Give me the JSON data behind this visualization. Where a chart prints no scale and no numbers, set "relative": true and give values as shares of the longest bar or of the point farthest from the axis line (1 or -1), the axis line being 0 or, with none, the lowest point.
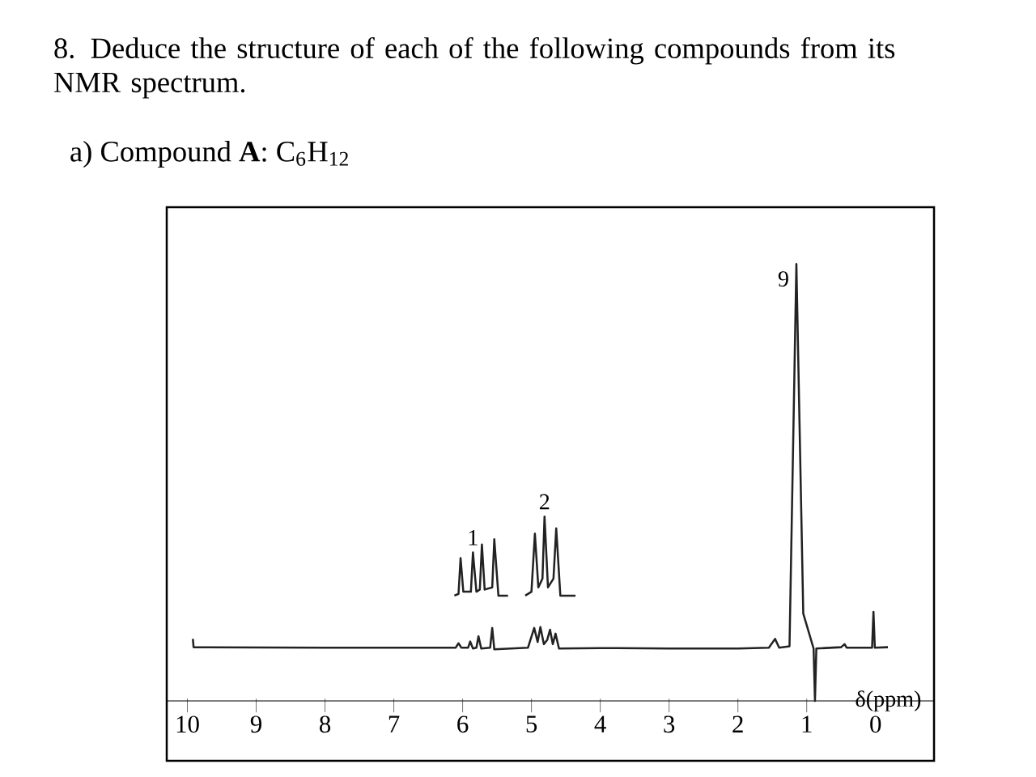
{
  "chart_data": {
    "type": "line",
    "title": "8. Deduce the structure of each of the following compounds from its NMR spectrum.",
    "subtitle": "a) Compound **A**: C$_{6}$H$_{12}$",
    "xlabel": "δ(ppm)",
    "relative": true,
    "xlim": [
      10.3,
      -0.85
    ],
    "xticks": [
      10,
      9,
      8,
      7,
      6,
      5,
      4,
      3,
      2,
      1,
      0
    ],
    "annotations": [
      {
        "text": "1",
        "x": 5.85,
        "y": 0.34
      },
      {
        "text": "2",
        "x": 4.81,
        "y": 0.422
      },
      {
        "text": "9",
        "x": 1.15,
        "y": 1.0
      }
    ],
    "series": [
      {
        "color": "#222222",
        "x": [
          9.92,
          9.91,
          8,
          6.5,
          6.1,
          6.06,
          6.02,
          5.92,
          5.89,
          5.85,
          5.8,
          5.77,
          5.73,
          5.6,
          5.57,
          5.54,
          5.3,
          5.05,
          4.96,
          4.91,
          4.87,
          4.82,
          4.77,
          4.73,
          4.69,
          4.65,
          4.6,
          4,
          3,
          2,
          1.55,
          1.46,
          1.4,
          1.25,
          1.15,
          1.05,
          0.9,
          0.88,
          0.86,
          0.5,
          0.45,
          0.42,
          0.05,
          0.03,
          0.01,
          -0.18
        ],
        "values": [
          0.142,
          0.123,
          0.122,
          0.122,
          0.122,
          0.132,
          0.122,
          0.122,
          0.136,
          0.12,
          0.122,
          0.148,
          0.12,
          0.122,
          0.167,
          0.118,
          0.12,
          0.122,
          0.167,
          0.135,
          0.169,
          0.13,
          0.14,
          0.163,
          0.13,
          0.154,
          0.12,
          0.121,
          0.12,
          0.12,
          0.122,
          0.142,
          0.122,
          0.125,
          1.0,
          0.2,
          0.12,
          0,
          0.12,
          0.123,
          0.13,
          0.122,
          0.122,
          0.204,
          0.122,
          0.123
        ]
      },
      {
        "color": "#222222",
        "x": [
          6.12,
          6.06,
          6.03,
          5.99,
          5.88,
          5.85,
          5.8,
          5.75,
          5.72,
          5.68,
          5.57,
          5.54,
          5.48,
          5.34,
          5.2,
          5.09,
          5.0,
          4.95,
          4.9,
          4.84,
          4.81,
          4.76,
          4.68,
          4.64,
          4.58,
          4.36
        ],
        "values": [
          0.241,
          0.245,
          0.327,
          0.25,
          0.25,
          0.34,
          0.25,
          0.255,
          0.358,
          0.255,
          0.26,
          0.37,
          0.241,
          0.241,
          null,
          0.241,
          0.25,
          0.383,
          0.26,
          0.28,
          0.422,
          0.26,
          0.28,
          0.395,
          0.241,
          0.241
        ]
      }
    ]
  }
}
